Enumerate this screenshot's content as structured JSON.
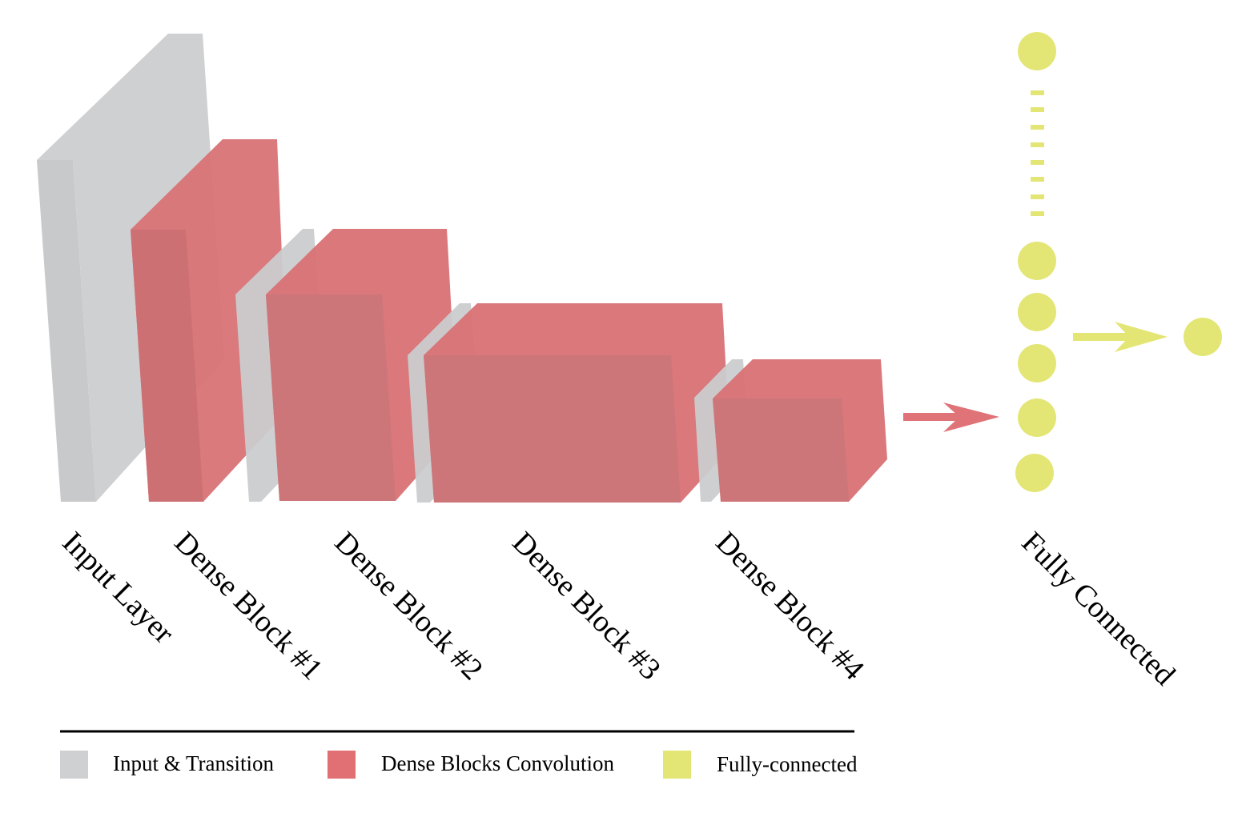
{
  "colors": {
    "input_transition": "#cfd0d2",
    "input_transition_dark": "#c5c6c8",
    "dense_block": "#d87376",
    "dense_block_dark": "#cc7679",
    "fully_connected": "#e3e675",
    "arrow_red": "#e07377",
    "legend_line": "#000000"
  },
  "stages": [
    {
      "label": "Input Layer"
    },
    {
      "label": "Dense Block #1"
    },
    {
      "label": "Dense Block #2"
    },
    {
      "label": "Dense Block #3"
    },
    {
      "label": "Dense Block #4"
    },
    {
      "label": "Fully Connected"
    }
  ],
  "legend": [
    {
      "label": "Input & Transition",
      "color": "#cfd0d2"
    },
    {
      "label": "Dense Blocks Convolution",
      "color": "#e07073"
    },
    {
      "label": "Fully-connected",
      "color": "#e3e675"
    }
  ]
}
